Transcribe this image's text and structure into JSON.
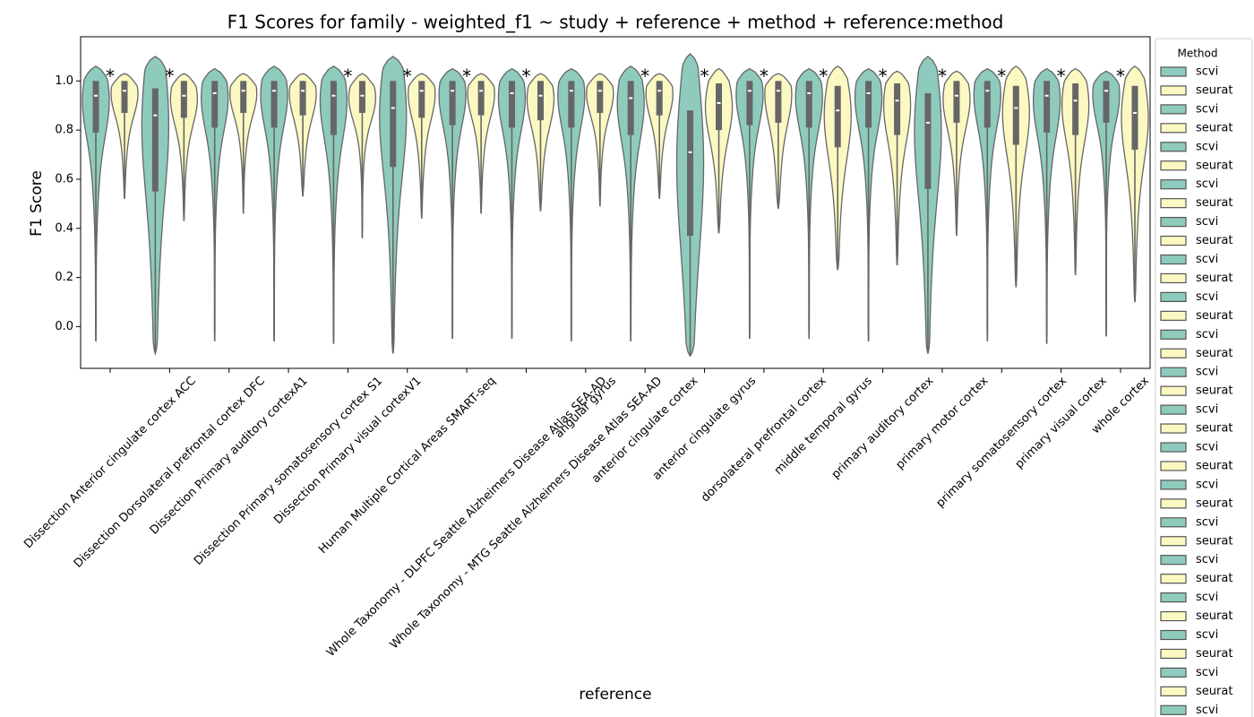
{
  "chart_data": {
    "type": "violin",
    "title": "F1 Scores for family - weighted_f1 ~ study + reference + method + reference:method",
    "xlabel": "reference",
    "ylabel": "F1 Score",
    "legend_title": "Method",
    "legend_position": "right",
    "annotation_text": "*",
    "categories": [
      "Dissection Anterior cingulate cortex ACC",
      "Dissection Dorsolateral prefrontal cortex DFC",
      "Dissection Primary auditory cortexA1",
      "Dissection Primary somatosensory cortex S1",
      "Dissection Primary visual cortexV1",
      "Human Multiple Cortical Areas SMART-seq",
      "Whole Taxonomy - DLPFC Seattle Alzheimers Disease Atlas SEA-AD",
      "Whole Taxonomy - MTG Seattle Alzheimers Disease Atlas SEA-AD",
      "angular gyrus",
      "anterior cingulate cortex",
      "anterior cingulate gyrus",
      "dorsolateral prefrontal cortex",
      "middle temporal gyrus",
      "primary auditory cortex",
      "primary motor cortex",
      "primary somatosensory cortex",
      "primary visual cortex",
      "whole cortex"
    ],
    "significant": [
      true,
      true,
      false,
      false,
      true,
      true,
      true,
      true,
      false,
      true,
      true,
      true,
      true,
      true,
      true,
      true,
      true,
      true
    ],
    "ylim": [
      -0.17,
      1.18
    ],
    "yticks": [
      {
        "value": 0,
        "label": "0.0"
      },
      0.2,
      0.4,
      0.6,
      0.8,
      {
        "value": 1,
        "label": "1.0"
      }
    ],
    "series": [
      {
        "name": "scvi",
        "color": "#8ecbbd",
        "min": [
          -0.06,
          -0.11,
          -0.06,
          -0.06,
          -0.07,
          -0.11,
          -0.05,
          -0.05,
          -0.06,
          -0.06,
          -0.12,
          -0.05,
          -0.05,
          -0.06,
          -0.11,
          -0.06,
          -0.07,
          -0.04
        ],
        "q1": [
          0.79,
          0.55,
          0.81,
          0.81,
          0.78,
          0.65,
          0.82,
          0.81,
          0.81,
          0.78,
          0.37,
          0.82,
          0.81,
          0.81,
          0.56,
          0.81,
          0.79,
          0.83
        ],
        "median": [
          0.94,
          0.86,
          0.95,
          0.96,
          0.94,
          0.89,
          0.96,
          0.95,
          0.96,
          0.93,
          0.71,
          0.96,
          0.95,
          0.95,
          0.83,
          0.96,
          0.94,
          0.96
        ],
        "q3": [
          1.0,
          0.97,
          1.0,
          1.0,
          1.0,
          1.0,
          1.0,
          1.0,
          1.0,
          1.0,
          0.88,
          1.0,
          1.0,
          1.0,
          0.95,
          1.0,
          1.0,
          1.0
        ],
        "max": [
          1.06,
          1.1,
          1.05,
          1.06,
          1.06,
          1.1,
          1.05,
          1.05,
          1.05,
          1.06,
          1.11,
          1.05,
          1.05,
          1.05,
          1.1,
          1.05,
          1.05,
          1.04
        ]
      },
      {
        "name": "seurat",
        "color": "#fcf8c2",
        "min": [
          0.52,
          0.43,
          0.46,
          0.53,
          0.36,
          0.44,
          0.46,
          0.47,
          0.49,
          0.52,
          0.38,
          0.48,
          0.23,
          0.25,
          0.37,
          0.16,
          0.21,
          0.1
        ],
        "q1": [
          0.87,
          0.85,
          0.87,
          0.86,
          0.87,
          0.85,
          0.86,
          0.84,
          0.87,
          0.86,
          0.8,
          0.83,
          0.73,
          0.78,
          0.83,
          0.74,
          0.78,
          0.72
        ],
        "median": [
          0.96,
          0.94,
          0.96,
          0.96,
          0.94,
          0.96,
          0.96,
          0.94,
          0.96,
          0.96,
          0.91,
          0.96,
          0.88,
          0.92,
          0.94,
          0.89,
          0.92,
          0.87
        ],
        "q3": [
          1.0,
          1.0,
          1.0,
          1.0,
          1.0,
          1.0,
          1.0,
          1.0,
          1.0,
          1.0,
          0.99,
          1.0,
          0.98,
          0.99,
          1.0,
          0.98,
          0.99,
          0.98
        ],
        "max": [
          1.03,
          1.03,
          1.03,
          1.03,
          1.03,
          1.03,
          1.03,
          1.03,
          1.03,
          1.03,
          1.05,
          1.03,
          1.06,
          1.04,
          1.04,
          1.06,
          1.05,
          1.06
        ]
      }
    ]
  }
}
